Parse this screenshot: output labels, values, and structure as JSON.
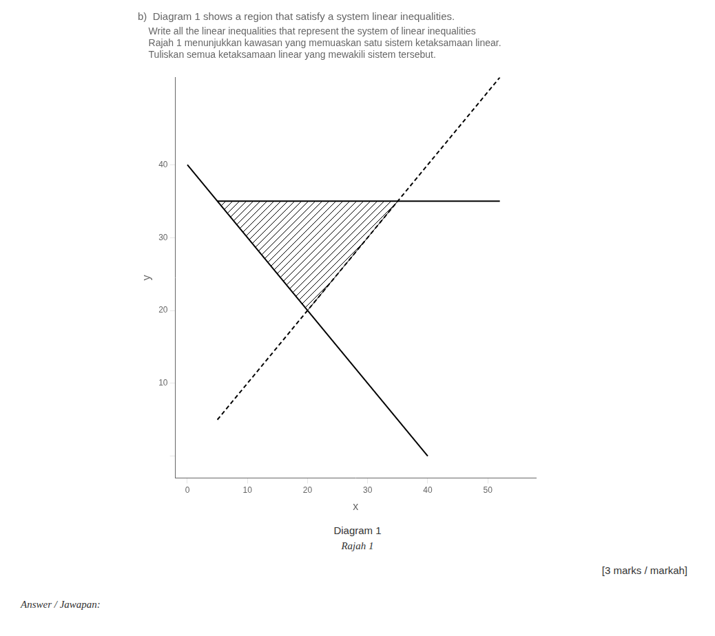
{
  "chart_data": {
    "type": "line",
    "title": "b)  Diagram 1 shows a region that satisfy a system linear inequalities.",
    "subtitle": [
      "    Write all the linear inequalities that represent the system of linear inequalities",
      "    Rajah 1 menunjukkan kawasan yang memuaskan satu sistem ketaksamaan linear.",
      "    Tuliskan semua ketaksamaan linear yang mewakili sistem tersebut."
    ],
    "xlabel": "x",
    "ylabel": "y",
    "series": [
      {
        "x": [
          0,
          40
        ],
        "values": [
          40,
          0
        ],
        "color": "black",
        "line_style": "solid"
      },
      {
        "x": [
          5,
          52
        ],
        "values": [
          35,
          35
        ],
        "color": "black",
        "line_style": "solid"
      },
      {
        "x": [
          5,
          52
        ],
        "values": [
          5,
          52
        ],
        "color": "black",
        "line_style": "dashed"
      },
      {
        "type": "polygon",
        "x": [
          5,
          35,
          20
        ],
        "values": [
          35,
          35,
          20
        ],
        "color": "black"
      }
    ],
    "annotations": [
      "Diagram 1",
      "Rajah 1",
      "[3 marks / markah]",
      "Answer / Jawapan:"
    ],
    "xlim": [
      -2,
      58
    ],
    "ylim": [
      -3,
      52
    ],
    "xticks": [
      0,
      10,
      20,
      30,
      40,
      50
    ],
    "yticks": [
      {
        "value": 0,
        "label": null
      },
      10,
      20,
      30,
      40
    ],
    "grid": false
  }
}
